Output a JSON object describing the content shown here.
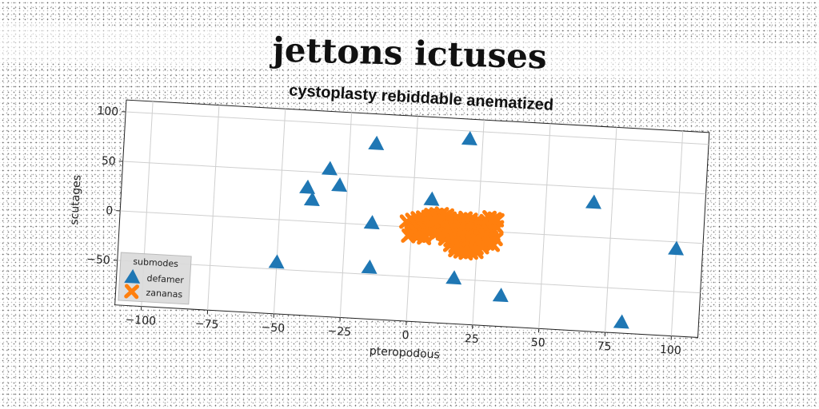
{
  "header": {
    "title": "jettons ictuses"
  },
  "chart_data": {
    "type": "scatter",
    "title": "cystoplasty rebiddable anematized",
    "xlabel": "pteropodous",
    "ylabel": "scutages",
    "xlim": [
      -110,
      110
    ],
    "ylim": [
      -95,
      112
    ],
    "xticks": [
      -100,
      -75,
      -50,
      -25,
      0,
      25,
      50,
      75,
      100
    ],
    "yticks": [
      -50,
      0,
      50,
      100
    ],
    "grid": true,
    "legend": {
      "title": "submodes",
      "position": "lower-left"
    },
    "series": [
      {
        "name": "defamer",
        "marker": "triangle",
        "color": "#1f77b4",
        "x": [
          -15,
          20,
          -32,
          -40,
          -28,
          -38,
          7,
          68,
          -15,
          100,
          -50,
          -15,
          17,
          35,
          81
        ],
        "y": [
          82,
          92,
          54,
          34,
          38,
          22,
          29,
          35,
          2,
          -7,
          -43,
          -43,
          -49,
          -64,
          -84
        ]
      },
      {
        "name": "zananas",
        "marker": "x",
        "color": "#ff7f0e",
        "x": [
          -2,
          0,
          2,
          4,
          6,
          8,
          10,
          12,
          14,
          16,
          18,
          20,
          22,
          24,
          26,
          28,
          30,
          32,
          0,
          2,
          4,
          6,
          8,
          10,
          12,
          14,
          16,
          18,
          20,
          22,
          24,
          26,
          28,
          30,
          32,
          1,
          3,
          5,
          7,
          9,
          11,
          13,
          15,
          17,
          19,
          21,
          23,
          25,
          27,
          29,
          31,
          0,
          2,
          4,
          6,
          10,
          12,
          14,
          16,
          18,
          20,
          22,
          24,
          26,
          28,
          30,
          32,
          -1,
          3,
          5,
          9,
          13,
          15,
          17,
          19,
          21,
          23,
          25,
          27,
          29,
          31,
          5,
          15,
          17,
          19,
          21,
          23,
          25,
          27,
          17,
          19,
          21,
          23,
          25,
          7,
          9,
          11,
          13,
          29,
          31,
          8,
          10
        ],
        "y": [
          5,
          7,
          9,
          10,
          11,
          12,
          13,
          12,
          11,
          10,
          10,
          12,
          11,
          9,
          8,
          10,
          11,
          12,
          0,
          2,
          3,
          5,
          6,
          7,
          6,
          5,
          4,
          4,
          5,
          6,
          5,
          4,
          3,
          4,
          5,
          -3,
          -2,
          -1,
          0,
          1,
          1,
          0,
          -1,
          -1,
          0,
          1,
          0,
          -1,
          -1,
          0,
          1,
          -6,
          -5,
          -4,
          -3,
          -4,
          -5,
          -6,
          -7,
          -6,
          -5,
          -6,
          -7,
          -6,
          -5,
          -6,
          -7,
          -9,
          -8,
          -7,
          -6,
          -10,
          -11,
          -12,
          -13,
          -12,
          -11,
          -10,
          -11,
          -12,
          -13,
          -10,
          -16,
          -17,
          -18,
          -19,
          -18,
          -17,
          -16,
          -21,
          -22,
          -23,
          -22,
          -21,
          13,
          14,
          15,
          14,
          14,
          13,
          8,
          9
        ]
      }
    ]
  }
}
